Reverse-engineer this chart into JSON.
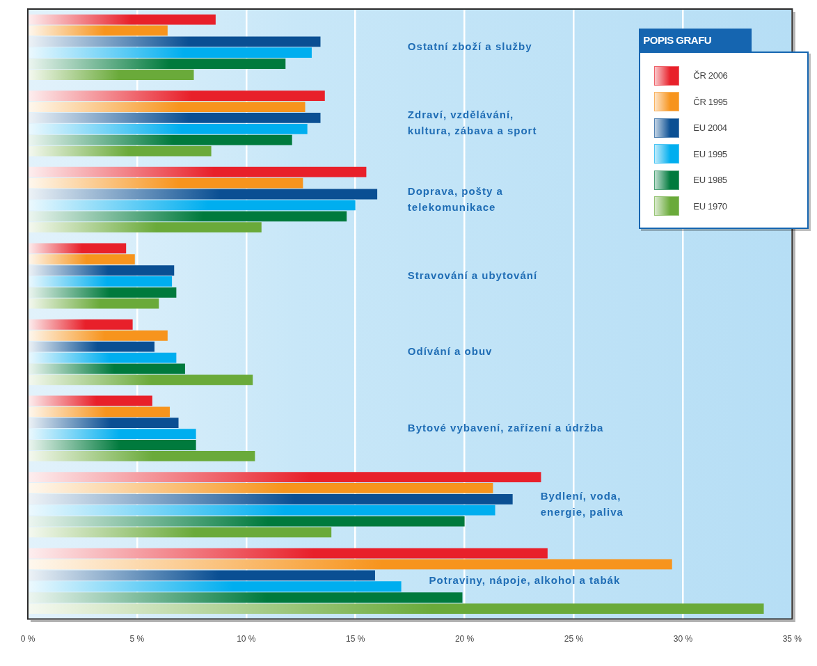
{
  "chart_data": {
    "type": "bar",
    "orientation": "horizontal",
    "categories": [
      "Ostatní zboží a služby",
      "Zdraví, vzdělávání,\nkultura, zábava a sport",
      "Doprava, pošty a\ntelekomunikace",
      "Stravování a ubytování",
      "Odívání a obuv",
      "Bytové vybavení, zařízení a údržba",
      "Bydlení, voda,\nenergie, paliva",
      "Potraviny, nápoje, alkohol a tabák"
    ],
    "series": [
      {
        "name": "ČR 2006",
        "color": "#e8202a",
        "values": [
          8.6,
          13.6,
          15.5,
          4.5,
          4.8,
          5.7,
          23.5,
          23.8
        ]
      },
      {
        "name": "ČR 1995",
        "color": "#f7941d",
        "values": [
          6.4,
          12.7,
          12.6,
          4.9,
          6.4,
          6.5,
          21.3,
          29.5
        ]
      },
      {
        "name": "EU 2004",
        "color": "#0a4f93",
        "values": [
          13.4,
          13.4,
          16.0,
          6.7,
          5.8,
          6.9,
          22.2,
          15.9
        ]
      },
      {
        "name": "EU 1995",
        "color": "#00aeef",
        "values": [
          13.0,
          12.8,
          15.0,
          6.6,
          6.8,
          7.7,
          21.4,
          17.1
        ]
      },
      {
        "name": "EU 1985",
        "color": "#007a3d",
        "values": [
          11.8,
          12.1,
          14.6,
          6.8,
          7.2,
          7.7,
          20.0,
          19.9
        ]
      },
      {
        "name": "EU 1970",
        "color": "#6aaa3a",
        "values": [
          7.6,
          8.4,
          10.7,
          6.0,
          10.3,
          10.4,
          13.9,
          33.7
        ]
      }
    ],
    "xlim": [
      0,
      35
    ],
    "xticks": [
      {
        "value": 0,
        "label": "0 %"
      },
      {
        "value": 5,
        "label": "5 %"
      },
      {
        "value": 10,
        "label": "10 %"
      },
      {
        "value": 15,
        "label": "15 %"
      },
      {
        "value": 20,
        "label": "20 %"
      },
      {
        "value": 25,
        "label": "25 %"
      },
      {
        "value": 30,
        "label": "30 %"
      },
      {
        "value": 35,
        "label": "35 %"
      }
    ],
    "grid": "x",
    "legend": "top right",
    "legend_title": "POPIS GRAFU"
  }
}
